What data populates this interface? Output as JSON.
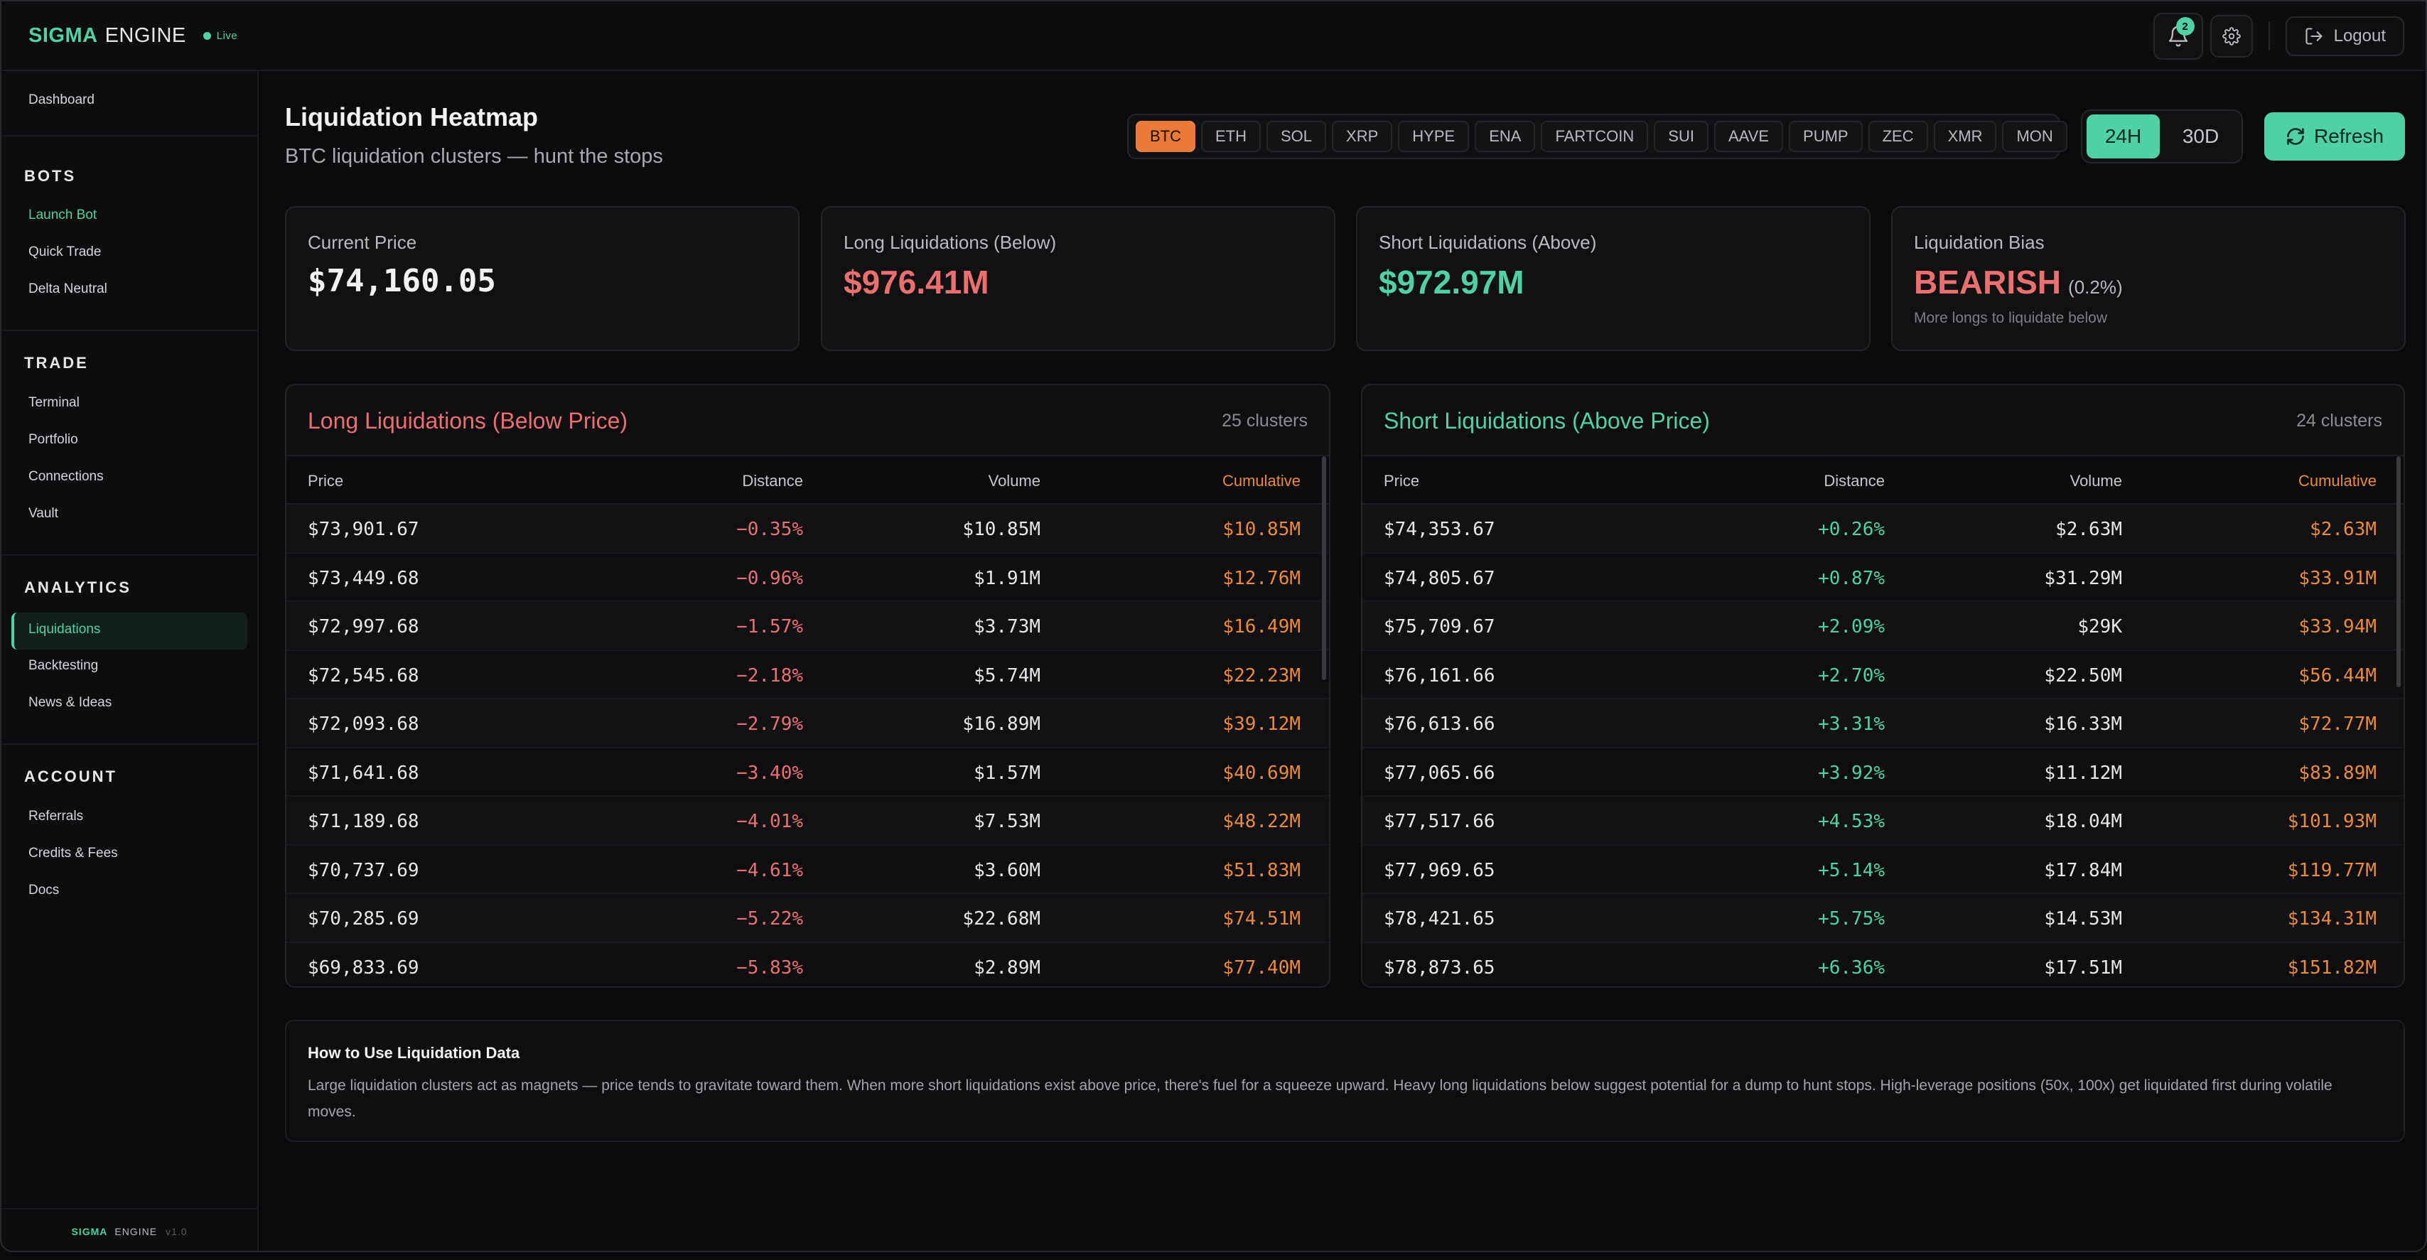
{
  "brand": {
    "name_primary": "SIGMA",
    "name_secondary": "ENGINE",
    "status": "Live"
  },
  "topbar": {
    "notifications_count": "2",
    "logout_label": "Logout"
  },
  "sidebar": {
    "dashboard": "Dashboard",
    "sections": [
      {
        "title": "BOTS",
        "items": [
          "Launch Bot",
          "Quick Trade",
          "Delta Neutral"
        ]
      },
      {
        "title": "TRADE",
        "items": [
          "Terminal",
          "Portfolio",
          "Connections",
          "Vault"
        ]
      },
      {
        "title": "ANALYTICS",
        "items": [
          "Liquidations",
          "Backtesting",
          "News & Ideas"
        ]
      },
      {
        "title": "ACCOUNT",
        "items": [
          "Referrals",
          "Credits & Fees",
          "Docs"
        ]
      }
    ],
    "footer": {
      "primary": "SIGMA",
      "secondary": "ENGINE",
      "version": "v1.0"
    }
  },
  "page": {
    "title": "Liquidation Heatmap",
    "subtitle": "BTC liquidation clusters — hunt the stops"
  },
  "coins": [
    "BTC",
    "ETH",
    "SOL",
    "XRP",
    "HYPE",
    "ENA",
    "FARTCOIN",
    "SUI",
    "AAVE",
    "PUMP",
    "ZEC",
    "XMR",
    "MON"
  ],
  "selected_coin": "BTC",
  "timeframes": [
    "24H",
    "30D"
  ],
  "selected_timeframe": "24H",
  "refresh_label": "Refresh",
  "stats": {
    "current_price": {
      "label": "Current Price",
      "value": "$74,160.05"
    },
    "long_liq": {
      "label": "Long Liquidations (Below)",
      "value": "$976.41M"
    },
    "short_liq": {
      "label": "Short Liquidations (Above)",
      "value": "$972.97M"
    },
    "bias": {
      "label": "Liquidation Bias",
      "value": "BEARISH",
      "pct": "(0.2%)",
      "note": "More longs to liquidate below"
    }
  },
  "long_table": {
    "title": "Long Liquidations (Below Price)",
    "count": "25 clusters",
    "headers": [
      "Price",
      "Distance",
      "Volume",
      "Cumulative"
    ],
    "rows": [
      [
        "$73,901.67",
        "−0.35%",
        "$10.85M",
        "$10.85M"
      ],
      [
        "$73,449.68",
        "−0.96%",
        "$1.91M",
        "$12.76M"
      ],
      [
        "$72,997.68",
        "−1.57%",
        "$3.73M",
        "$16.49M"
      ],
      [
        "$72,545.68",
        "−2.18%",
        "$5.74M",
        "$22.23M"
      ],
      [
        "$72,093.68",
        "−2.79%",
        "$16.89M",
        "$39.12M"
      ],
      [
        "$71,641.68",
        "−3.40%",
        "$1.57M",
        "$40.69M"
      ],
      [
        "$71,189.68",
        "−4.01%",
        "$7.53M",
        "$48.22M"
      ],
      [
        "$70,737.69",
        "−4.61%",
        "$3.60M",
        "$51.83M"
      ],
      [
        "$70,285.69",
        "−5.22%",
        "$22.68M",
        "$74.51M"
      ],
      [
        "$69,833.69",
        "−5.83%",
        "$2.89M",
        "$77.40M"
      ]
    ]
  },
  "short_table": {
    "title": "Short Liquidations (Above Price)",
    "count": "24 clusters",
    "headers": [
      "Price",
      "Distance",
      "Volume",
      "Cumulative"
    ],
    "rows": [
      [
        "$74,353.67",
        "+0.26%",
        "$2.63M",
        "$2.63M"
      ],
      [
        "$74,805.67",
        "+0.87%",
        "$31.29M",
        "$33.91M"
      ],
      [
        "$75,709.67",
        "+2.09%",
        "$29K",
        "$33.94M"
      ],
      [
        "$76,161.66",
        "+2.70%",
        "$22.50M",
        "$56.44M"
      ],
      [
        "$76,613.66",
        "+3.31%",
        "$16.33M",
        "$72.77M"
      ],
      [
        "$77,065.66",
        "+3.92%",
        "$11.12M",
        "$83.89M"
      ],
      [
        "$77,517.66",
        "+4.53%",
        "$18.04M",
        "$101.93M"
      ],
      [
        "$77,969.65",
        "+5.14%",
        "$17.84M",
        "$119.77M"
      ],
      [
        "$78,421.65",
        "+5.75%",
        "$14.53M",
        "$134.31M"
      ],
      [
        "$78,873.65",
        "+6.36%",
        "$17.51M",
        "$151.82M"
      ]
    ]
  },
  "info": {
    "title": "How to Use Liquidation Data",
    "text": "Large liquidation clusters act as magnets — price tends to gravitate toward them. When more short liquidations exist above price, there's fuel for a squeeze upward. Heavy long liquidations below suggest potential for a dump to hunt stops. High-leverage positions (50x, 100x) get liquidated first during volatile moves."
  },
  "colors": {
    "accent": "#4fd1a5",
    "long": "#ec6f6f",
    "cumulative": "#ea8a3a",
    "coin_active": "#ea7a3a"
  }
}
